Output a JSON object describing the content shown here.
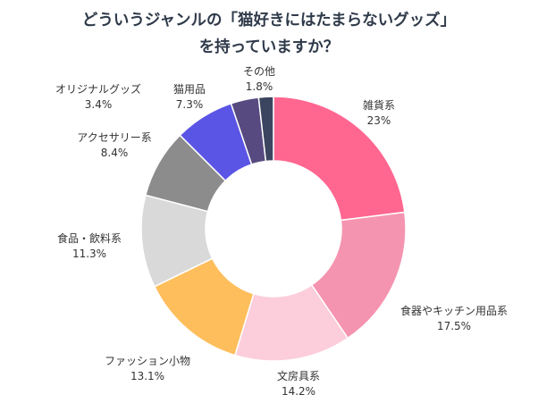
{
  "chart_data": {
    "type": "pie",
    "variant": "donut",
    "title_lines": [
      "どういうジャンルの「猫好きにはたまらないグッズ」",
      "を持っていますか？"
    ],
    "slices": [
      {
        "label": "雑貨系",
        "value": 23,
        "value_text": "23%",
        "color": "#FF6690"
      },
      {
        "label": "食器やキッチン用品系",
        "value": 17.5,
        "value_text": "17.5%",
        "color": "#F594B0"
      },
      {
        "label": "文房具系",
        "value": 14.2,
        "value_text": "14.2%",
        "color": "#FCCDDB"
      },
      {
        "label": "ファッション小物",
        "value": 13.1,
        "value_text": "13.1%",
        "color": "#FFBE5C"
      },
      {
        "label": "食品・飲料系",
        "value": 11.3,
        "value_text": "11.3%",
        "color": "#D9D9D9"
      },
      {
        "label": "アクセサリー系",
        "value": 8.4,
        "value_text": "8.4%",
        "color": "#8C8C8C"
      },
      {
        "label": "猫用品",
        "value": 7.3,
        "value_text": "7.3%",
        "color": "#5B55E6"
      },
      {
        "label": "オリジナルグッズ",
        "value": 3.4,
        "value_text": "3.4%",
        "color": "#574A80"
      },
      {
        "label": "その他",
        "value": 1.8,
        "value_text": "1.8%",
        "color": "#3C4560"
      }
    ]
  }
}
